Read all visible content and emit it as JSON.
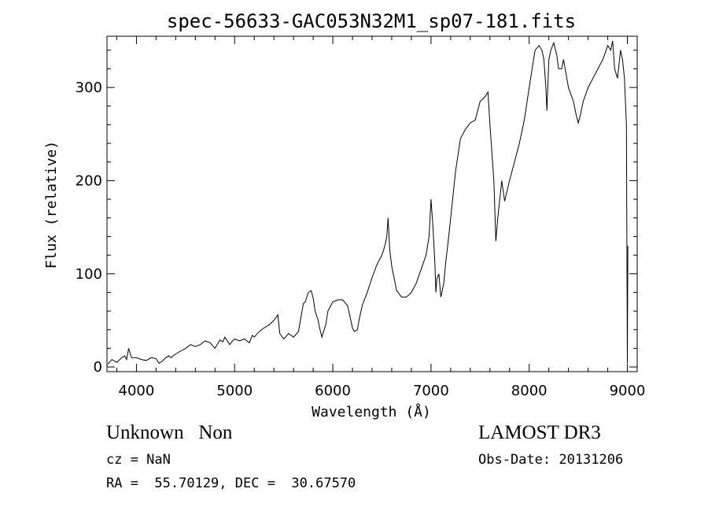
{
  "chart_data": {
    "type": "line",
    "title": "spec-56633-GAC053N32M1_sp07-181.fits",
    "xlabel": "Wavelength (Å)",
    "ylabel": "Flux (relative)",
    "xlim": [
      3700,
      9100
    ],
    "ylim": [
      -5,
      355
    ],
    "x_ticks": [
      4000,
      5000,
      6000,
      7000,
      8000,
      9000
    ],
    "y_ticks": [
      0,
      100,
      200,
      300
    ],
    "x_tick_labels": [
      "4000",
      "5000",
      "6000",
      "7000",
      "8000",
      "9000"
    ],
    "y_tick_labels": [
      "0",
      "100",
      "200",
      "300"
    ],
    "grid": false,
    "line_color": "#000000",
    "series": [
      {
        "x": [
          3710,
          3750,
          3800,
          3850,
          3880,
          3900,
          3920,
          3950,
          4000,
          4050,
          4100,
          4150,
          4200,
          4230,
          4260,
          4300,
          4330,
          4350,
          4400,
          4450,
          4500,
          4550,
          4600,
          4650,
          4700,
          4750,
          4800,
          4850,
          4880,
          4900,
          4950,
          4980,
          5000,
          5050,
          5100,
          5150,
          5180,
          5200,
          5250,
          5300,
          5350,
          5400,
          5440,
          5460,
          5500,
          5550,
          5600,
          5650,
          5700,
          5720,
          5750,
          5780,
          5800,
          5820,
          5850,
          5870,
          5890,
          5900,
          5930,
          5950,
          5980,
          6000,
          6050,
          6100,
          6150,
          6180,
          6200,
          6220,
          6250,
          6270,
          6300,
          6350,
          6400,
          6450,
          6500,
          6530,
          6550,
          6563,
          6580,
          6600,
          6650,
          6680,
          6700,
          6750,
          6800,
          6850,
          6900,
          6950,
          6980,
          7000,
          7020,
          7040,
          7050,
          7060,
          7080,
          7100,
          7120,
          7130,
          7150,
          7180,
          7200,
          7250,
          7300,
          7350,
          7400,
          7450,
          7500,
          7550,
          7580,
          7600,
          7620,
          7640,
          7660,
          7680,
          7700,
          7720,
          7750,
          7800,
          7850,
          7900,
          7950,
          8000,
          8030,
          8060,
          8100,
          8130,
          8150,
          8170,
          8180,
          8200,
          8220,
          8250,
          8280,
          8300,
          8330,
          8350,
          8380,
          8400,
          8450,
          8480,
          8500,
          8520,
          8550,
          8600,
          8650,
          8700,
          8750,
          8800,
          8830,
          8850,
          8870,
          8900,
          8930,
          8950,
          8970,
          8990,
          9000,
          9005
        ],
        "y": [
          3,
          8,
          5,
          10,
          12,
          8,
          20,
          10,
          10,
          8,
          7,
          10,
          9,
          4,
          6,
          10,
          12,
          10,
          14,
          17,
          20,
          24,
          22,
          24,
          28,
          26,
          20,
          29,
          27,
          32,
          24,
          28,
          30,
          28,
          30,
          26,
          34,
          32,
          38,
          42,
          45,
          50,
          56,
          36,
          30,
          36,
          32,
          38,
          68,
          70,
          80,
          82,
          74,
          60,
          50,
          40,
          32,
          36,
          46,
          60,
          66,
          70,
          72,
          72,
          66,
          52,
          42,
          38,
          40,
          52,
          66,
          80,
          96,
          110,
          120,
          130,
          140,
          160,
          125,
          108,
          82,
          78,
          75,
          75,
          80,
          90,
          105,
          120,
          140,
          180,
          150,
          110,
          80,
          95,
          100,
          75,
          85,
          90,
          112,
          140,
          160,
          210,
          245,
          255,
          262,
          265,
          285,
          290,
          295,
          260,
          230,
          200,
          135,
          160,
          180,
          200,
          178,
          200,
          220,
          240,
          265,
          300,
          320,
          340,
          345,
          340,
          330,
          300,
          275,
          330,
          340,
          348,
          335,
          320,
          320,
          330,
          312,
          300,
          285,
          270,
          262,
          270,
          285,
          300,
          310,
          320,
          330,
          345,
          340,
          350,
          320,
          310,
          340,
          330,
          310,
          260,
          4,
          130
        ]
      }
    ]
  },
  "annotations": {
    "object_line": "Unknown   Non",
    "survey": "LAMOST DR3",
    "cz": "cz = NaN",
    "obs_date": "Obs-Date: 20131206",
    "coords": "RA =  55.70129, DEC =  30.67570"
  }
}
